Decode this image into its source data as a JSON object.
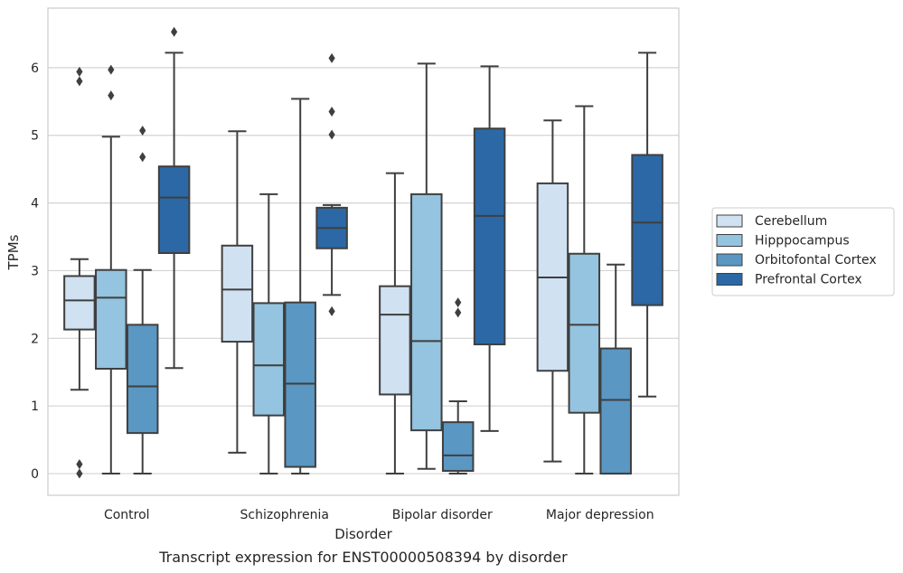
{
  "chart_data": {
    "type": "box",
    "title": "",
    "caption": "Transcript expression for ENST00000508394 by disorder",
    "xlabel": "Disorder",
    "ylabel": "TPMs",
    "ylim": [
      -0.32,
      6.88
    ],
    "yticks": [
      "0",
      "1",
      "2",
      "3",
      "4",
      "5",
      "6"
    ],
    "grid": "horizontal",
    "legend_position": "right",
    "categories": [
      "Control",
      "Schizophrenia",
      "Bipolar disorder",
      "Major depression"
    ],
    "series": [
      {
        "name": "Cerebellum",
        "color": "#d0e1f2",
        "boxes": [
          {
            "whisker_low": 1.24,
            "q1": 2.13,
            "median": 2.56,
            "q3": 2.92,
            "whisker_high": 3.17,
            "outliers": [
              5.94,
              5.8,
              0.14,
              0.0
            ]
          },
          {
            "whisker_low": 0.31,
            "q1": 1.95,
            "median": 2.72,
            "q3": 3.37,
            "whisker_high": 5.06,
            "outliers": []
          },
          {
            "whisker_low": 0.0,
            "q1": 1.17,
            "median": 2.35,
            "q3": 2.77,
            "whisker_high": 4.44,
            "outliers": []
          },
          {
            "whisker_low": 0.18,
            "q1": 1.52,
            "median": 2.9,
            "q3": 4.29,
            "whisker_high": 5.22,
            "outliers": []
          }
        ]
      },
      {
        "name": "Hipppocampus",
        "color": "#94c4df",
        "boxes": [
          {
            "whisker_low": 0.0,
            "q1": 1.55,
            "median": 2.6,
            "q3": 3.01,
            "whisker_high": 4.98,
            "outliers": [
              5.97,
              5.59
            ]
          },
          {
            "whisker_low": 0.0,
            "q1": 0.86,
            "median": 1.6,
            "q3": 2.52,
            "whisker_high": 4.13,
            "outliers": []
          },
          {
            "whisker_low": 0.07,
            "q1": 0.64,
            "median": 1.96,
            "q3": 4.13,
            "whisker_high": 6.06,
            "outliers": []
          },
          {
            "whisker_low": 0.0,
            "q1": 0.9,
            "median": 2.2,
            "q3": 3.25,
            "whisker_high": 5.43,
            "outliers": []
          }
        ]
      },
      {
        "name": "Orbitofontal Cortex",
        "color": "#5a97c3",
        "boxes": [
          {
            "whisker_low": 0.0,
            "q1": 0.6,
            "median": 1.29,
            "q3": 2.2,
            "whisker_high": 3.01,
            "outliers": [
              5.07,
              4.68
            ]
          },
          {
            "whisker_low": 0.0,
            "q1": 0.1,
            "median": 1.33,
            "q3": 2.53,
            "whisker_high": 5.54,
            "outliers": []
          },
          {
            "whisker_low": 0.0,
            "q1": 0.04,
            "median": 0.27,
            "q3": 0.76,
            "whisker_high": 1.07,
            "outliers": [
              2.53,
              2.38
            ]
          },
          {
            "whisker_low": 0.0,
            "q1": 0.0,
            "median": 1.09,
            "q3": 1.85,
            "whisker_high": 3.09,
            "outliers": []
          }
        ]
      },
      {
        "name": "Prefrontal Cortex",
        "color": "#2b68a5",
        "boxes": [
          {
            "whisker_low": 1.56,
            "q1": 3.26,
            "median": 4.08,
            "q3": 4.54,
            "whisker_high": 6.22,
            "outliers": [
              6.53
            ]
          },
          {
            "whisker_low": 2.64,
            "q1": 3.33,
            "median": 3.63,
            "q3": 3.93,
            "whisker_high": 3.97,
            "outliers": [
              6.14,
              5.35,
              5.01,
              2.4
            ]
          },
          {
            "whisker_low": 0.63,
            "q1": 1.91,
            "median": 3.81,
            "q3": 5.1,
            "whisker_high": 6.02,
            "outliers": []
          },
          {
            "whisker_low": 1.14,
            "q1": 2.49,
            "median": 3.71,
            "q3": 4.71,
            "whisker_high": 6.22,
            "outliers": []
          }
        ]
      }
    ]
  }
}
